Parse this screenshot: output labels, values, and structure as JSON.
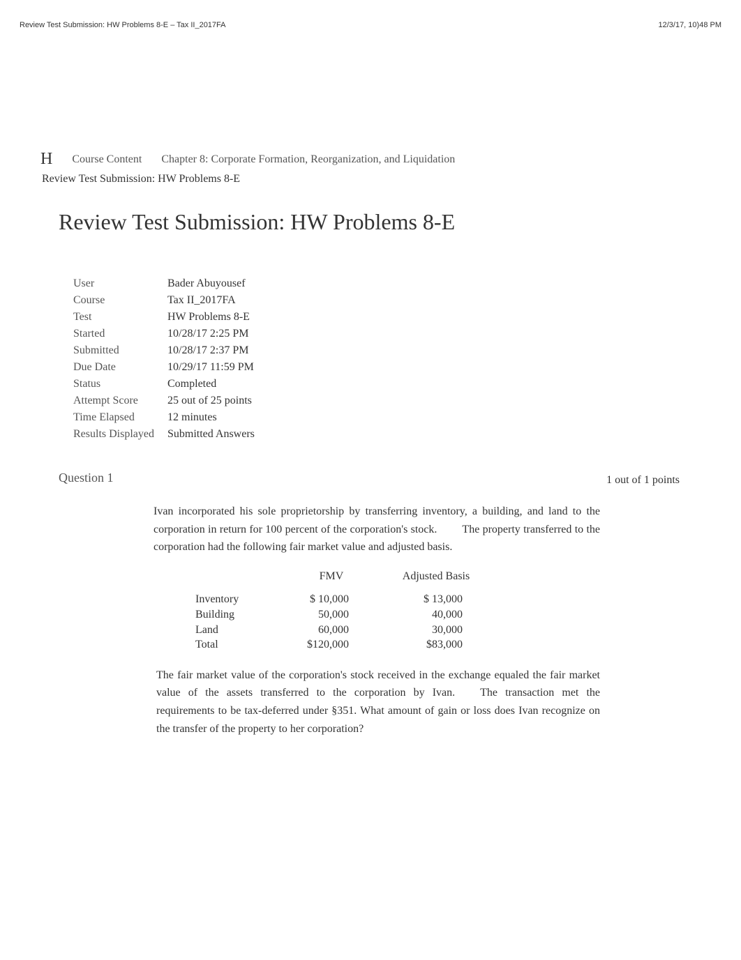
{
  "header": {
    "left": "Review Test Submission: HW Problems 8-E – Tax II_2017FA",
    "right": "12/3/17, 10)48 PM"
  },
  "breadcrumb": {
    "home_icon": "H",
    "course_content": "Course Content",
    "chapter": "Chapter 8: Corporate Formation, Reorganization, and Liquidation",
    "current": "Review Test Submission: HW Problems 8-E"
  },
  "title": "Review Test Submission: HW Problems 8-E",
  "info": {
    "user_label": "User",
    "user_value": "Bader Abuyousef",
    "course_label": "Course",
    "course_value": "Tax II_2017FA",
    "test_label": "Test",
    "test_value": "HW Problems 8-E",
    "started_label": "Started",
    "started_value": "10/28/17 2:25 PM",
    "submitted_label": "Submitted",
    "submitted_value": "10/28/17 2:37 PM",
    "duedate_label": "Due Date",
    "duedate_value": "10/29/17 11:59 PM",
    "status_label": "Status",
    "status_value": "Completed",
    "attempt_label": "Attempt Score",
    "attempt_value": "25 out of 25 points",
    "elapsed_label": "Time Elapsed",
    "elapsed_value": "12 minutes",
    "results_label": "Results Displayed",
    "results_value": "Submitted Answers"
  },
  "question": {
    "header": "Question 1",
    "points": "1 out of 1 points",
    "paragraph1_a": "Ivan incorporated his sole proprietorship by transferring inventory, a building, and land to the corporation in return for 100 percent of the corporation's stock.",
    "paragraph1_b": "The property transferred to the corporation had the following fair market value and adjusted basis.",
    "table": {
      "fmv_header": "FMV",
      "basis_header": "Adjusted Basis",
      "rows": [
        {
          "label": "Inventory",
          "fmv": "$   10,000",
          "basis": "$   13,000"
        },
        {
          "label": "Building",
          "fmv": "50,000",
          "basis": "40,000"
        },
        {
          "label": "Land",
          "fmv": "60,000",
          "basis": "30,000"
        },
        {
          "label": "Total",
          "fmv": "$120,000",
          "basis": "$83,000"
        }
      ]
    },
    "paragraph2_a": "The fair market value of the corporation's stock received in the exchange equaled the fair market value of the assets transferred to the corporation by Ivan.",
    "paragraph2_b": "The transaction met the requirements to be tax-deferred under §351. What amount of gain or loss does Ivan recognize   on the transfer of the property to her corporation?"
  },
  "colors": {
    "text_primary": "#333333",
    "text_secondary": "#555555",
    "background": "#ffffff"
  }
}
